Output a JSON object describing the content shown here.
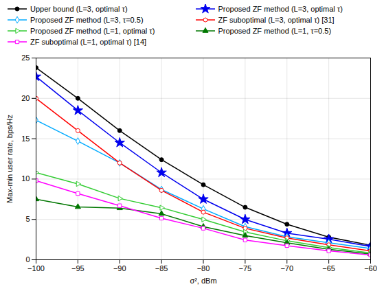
{
  "chart_data": {
    "type": "line",
    "x": [
      -60,
      -65,
      -70,
      -75,
      -80,
      -85,
      -90,
      -95,
      -100
    ],
    "series": [
      {
        "name": "Upper bound (L=3, optimal τ)",
        "color": "black",
        "marker": "circle",
        "values": [
          1.8,
          2.8,
          4.4,
          6.5,
          9.3,
          12.4,
          16.0,
          20.0,
          23.8
        ]
      },
      {
        "name": "Proposed ZF method (L=3, optimal τ)",
        "color": "#0000EE",
        "marker": "star",
        "values": [
          1.65,
          2.55,
          3.3,
          5.0,
          7.5,
          10.8,
          14.5,
          18.5,
          22.7
        ]
      },
      {
        "name": "Proposed ZF method (L=3, τ=0.5)",
        "color": "#00AAFF",
        "marker": "diamond-open",
        "values": [
          1.4,
          2.1,
          2.85,
          4.1,
          6.3,
          8.7,
          12.0,
          14.7,
          17.3
        ]
      },
      {
        "name": "ZF suboptimal (L=3, optimal τ) [31]",
        "color": "red",
        "marker": "circle-open",
        "values": [
          1.1,
          1.85,
          2.7,
          3.9,
          5.9,
          8.6,
          12.0,
          16.0,
          20.0
        ]
      },
      {
        "name": "Proposed ZF method (L=1, optimal τ)",
        "color": "#33CC33",
        "marker": "triangle-right-open",
        "values": [
          0.85,
          1.5,
          2.35,
          3.45,
          5.0,
          6.45,
          7.6,
          9.4,
          10.8
        ]
      },
      {
        "name": "Proposed ZF method (L=1, τ=0.5)",
        "color": "#007700",
        "marker": "triangle",
        "values": [
          0.7,
          1.3,
          2.1,
          3.0,
          4.1,
          5.7,
          6.4,
          6.55,
          7.5
        ]
      },
      {
        "name": "ZF suboptimal (L=1, optimal τ) [14]",
        "color": "#FF00FF",
        "marker": "square-open",
        "values": [
          0.6,
          1.1,
          1.75,
          2.45,
          3.9,
          5.15,
          6.7,
          8.2,
          9.8
        ]
      }
    ],
    "xlabel": "σ², dBm",
    "ylabel": "Max-min user rate, bps/Hz",
    "xlim": [
      -100,
      -60
    ],
    "ylim": [
      0,
      25
    ],
    "xticks": [
      -60,
      -65,
      -70,
      -75,
      -80,
      -85,
      -90,
      -95,
      -100
    ],
    "yticks": [
      0,
      5,
      10,
      15,
      20,
      25
    ],
    "grid": true
  }
}
